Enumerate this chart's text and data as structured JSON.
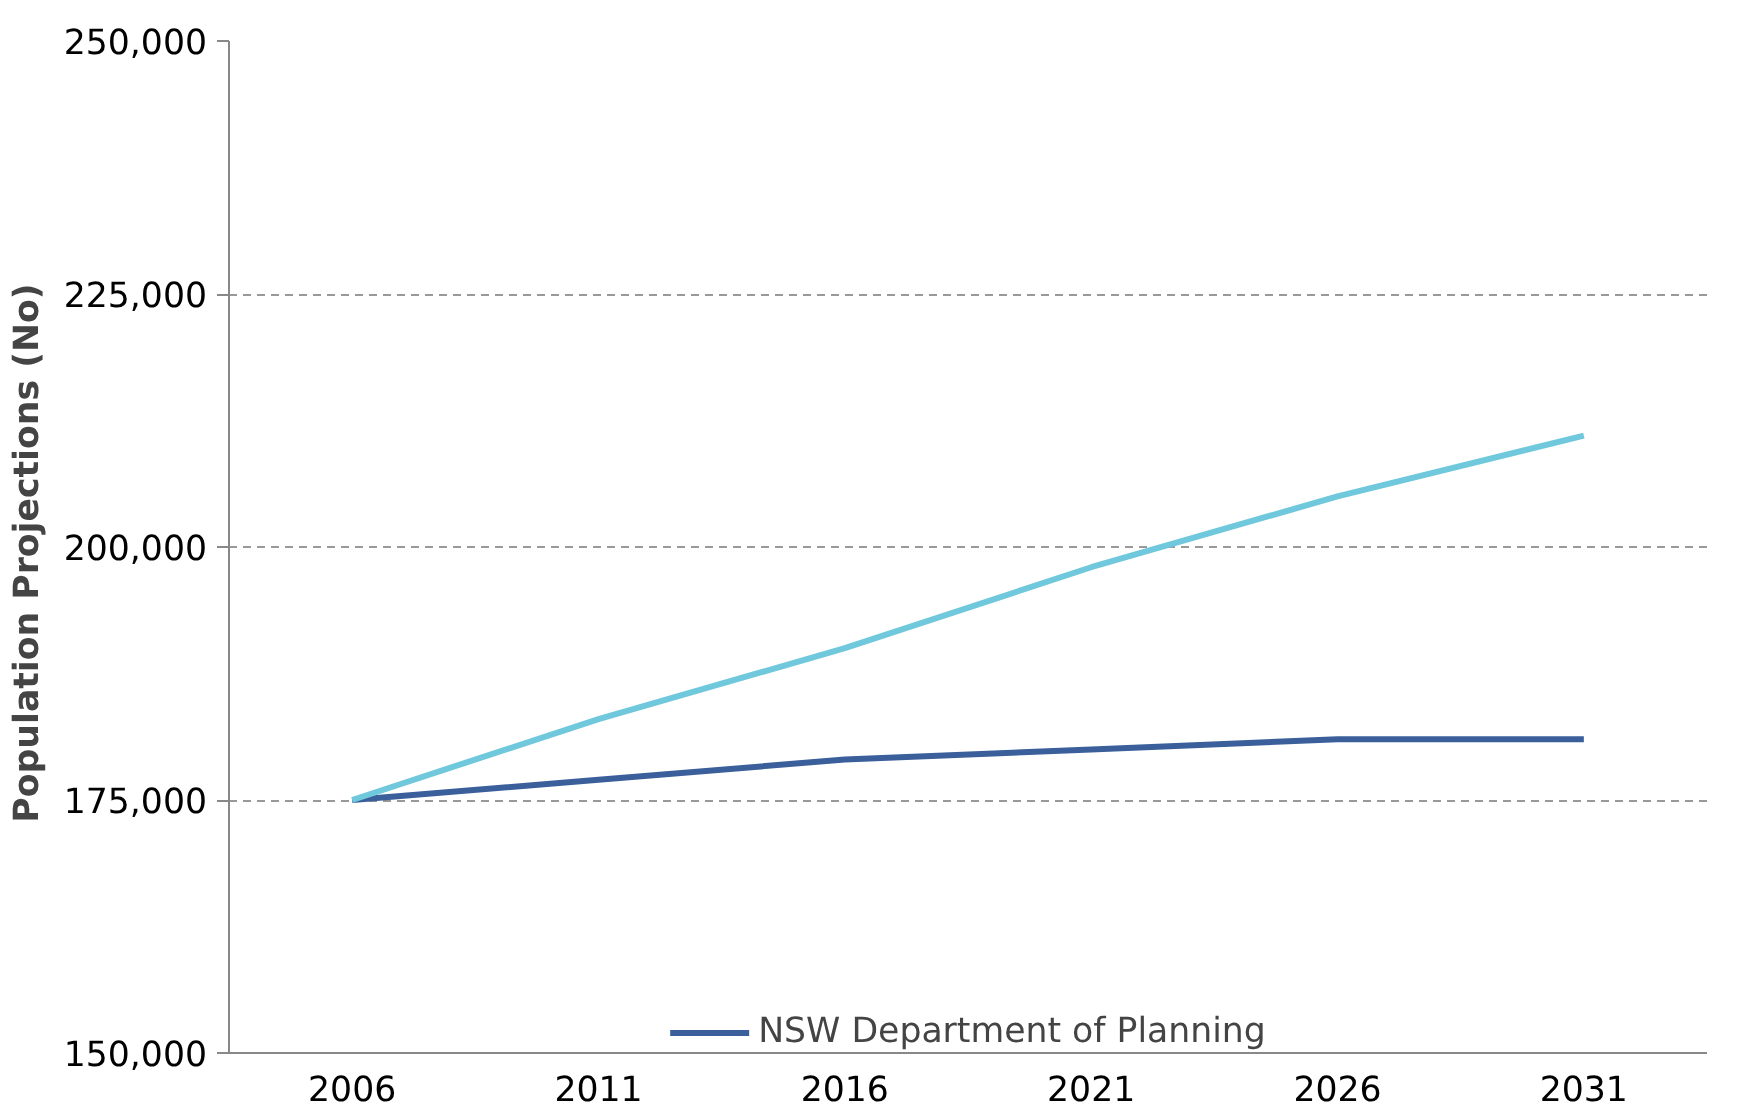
{
  "chart_data": {
    "type": "line",
    "ylabel": "Population  Projections (No)",
    "categories": [
      "2006",
      "2011",
      "2016",
      "2021",
      "2026",
      "2031"
    ],
    "series": [
      {
        "name": "NSW Department of Planning",
        "color": "#3a5f9a",
        "values": [
          175000,
          177000,
          179000,
          180000,
          181000,
          181000
        ]
      },
      {
        "color": "#70c8dc",
        "values": [
          175000,
          183000,
          190000,
          198000,
          205000,
          211000
        ]
      }
    ],
    "ylim": [
      150000,
      250000
    ],
    "yticks": [
      {
        "value": 150000,
        "label": "150,000"
      },
      {
        "value": 175000,
        "label": "175,000"
      },
      {
        "value": 200000,
        "label": "200,000"
      },
      {
        "value": 225000,
        "label": "225,000"
      },
      {
        "value": 250000,
        "label": "250,000"
      }
    ],
    "grid": "y",
    "legend": "bottom",
    "marker": "none",
    "line_style": "solid"
  }
}
